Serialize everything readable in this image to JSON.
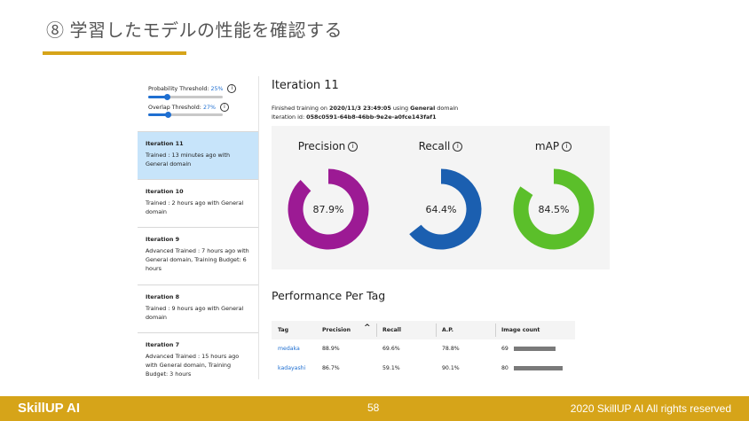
{
  "slide": {
    "title": "⑧ 学習したモデルの性能を確認する",
    "page_number": "58",
    "brand": "SkillUP AI",
    "copyright": "2020 SkillUP AI All rights reserved",
    "accent_color": "#d6a419"
  },
  "thresholds": {
    "probability": {
      "label": "Probability Threshold:",
      "value": "25%",
      "level": 0.25
    },
    "overlap": {
      "label": "Overlap Threshold:",
      "value": "27%",
      "level": 0.27
    },
    "info_icon": "info-icon"
  },
  "iterations": [
    {
      "name": "Iteration 11",
      "details": "Trained : 13 minutes ago with General domain",
      "selected": true
    },
    {
      "name": "Iteration 10",
      "details": "Trained : 2 hours ago with General domain",
      "selected": false
    },
    {
      "name": "Iteration 9",
      "details": "Advanced Trained : 7 hours ago with General domain, Training Budget: 6 hours",
      "selected": false
    },
    {
      "name": "Iteration 8",
      "details": "Trained : 9 hours ago with General domain",
      "selected": false
    },
    {
      "name": "Iteration 7",
      "details": "Advanced Trained : 15 hours ago with General domain, Training Budget: 3 hours",
      "selected": false
    }
  ],
  "detail": {
    "title": "Iteration 11",
    "finished_prefix": "Finished training on ",
    "finished_date": "2020/11/3 23:49:05",
    "finished_mid": " using ",
    "domain": "General",
    "finished_suffix": " domain",
    "id_label": "Iteration id: ",
    "id_value": "058c0591-64b8-46bb-9e2e-a0fce143faf1"
  },
  "metrics": [
    {
      "label": "Precision",
      "value": "87.9%",
      "fraction": 0.879,
      "color": "#9c1a94"
    },
    {
      "label": "Recall",
      "value": "64.4%",
      "fraction": 0.644,
      "color": "#1b5fb0"
    },
    {
      "label": "mAP",
      "value": "84.5%",
      "fraction": 0.845,
      "color": "#5bbf2a"
    }
  ],
  "performance": {
    "title": "Performance Per Tag",
    "headers": {
      "tag": "Tag",
      "precision": "Precision",
      "recall": "Recall",
      "ap": "A.P.",
      "image_count": "Image count"
    },
    "sort_icon": "chevron-up-icon",
    "rows": [
      {
        "tag": "medaka",
        "precision": "88.9%",
        "recall": "69.6%",
        "ap": "78.8%",
        "count": "69",
        "count_value": 69
      },
      {
        "tag": "kadayashi",
        "precision": "86.7%",
        "recall": "59.1%",
        "ap": "90.1%",
        "count": "80",
        "count_value": 80
      }
    ]
  }
}
